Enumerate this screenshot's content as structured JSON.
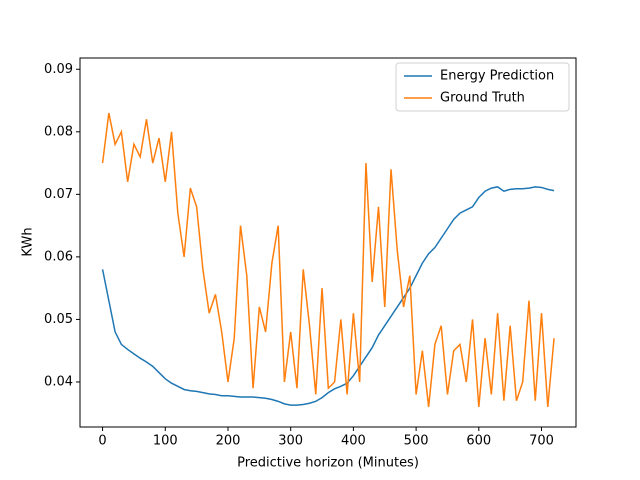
{
  "chart_data": {
    "type": "line",
    "xlabel": "Predictive horizon (Minutes)",
    "ylabel": "KWh",
    "x": [
      0,
      10,
      20,
      30,
      40,
      50,
      60,
      70,
      80,
      90,
      100,
      110,
      120,
      130,
      140,
      150,
      160,
      170,
      180,
      190,
      200,
      210,
      220,
      230,
      240,
      250,
      260,
      270,
      280,
      290,
      300,
      310,
      320,
      330,
      340,
      350,
      360,
      370,
      380,
      390,
      400,
      410,
      420,
      430,
      440,
      450,
      460,
      470,
      480,
      490,
      500,
      510,
      520,
      530,
      540,
      550,
      560,
      570,
      580,
      590,
      600,
      610,
      620,
      630,
      640,
      650,
      660,
      670,
      680,
      690,
      700,
      710,
      720
    ],
    "series": [
      {
        "name": "Energy Prediction",
        "color": "#1f77b4",
        "values": [
          0.058,
          0.053,
          0.048,
          0.046,
          0.0452,
          0.0445,
          0.0438,
          0.0432,
          0.0425,
          0.0415,
          0.0405,
          0.0398,
          0.0393,
          0.0388,
          0.0386,
          0.0385,
          0.0383,
          0.0381,
          0.038,
          0.0378,
          0.0378,
          0.0377,
          0.0376,
          0.0376,
          0.0376,
          0.0375,
          0.0374,
          0.0372,
          0.0369,
          0.0365,
          0.0363,
          0.0363,
          0.0364,
          0.0366,
          0.0369,
          0.0375,
          0.0383,
          0.0389,
          0.0393,
          0.0398,
          0.041,
          0.0425,
          0.044,
          0.0455,
          0.0475,
          0.049,
          0.0505,
          0.052,
          0.0535,
          0.055,
          0.057,
          0.059,
          0.0605,
          0.0615,
          0.063,
          0.0645,
          0.066,
          0.067,
          0.0675,
          0.068,
          0.0695,
          0.0705,
          0.071,
          0.0712,
          0.0705,
          0.0708,
          0.0709,
          0.0709,
          0.071,
          0.0712,
          0.0711,
          0.0708,
          0.0706
        ]
      },
      {
        "name": "Ground Truth",
        "color": "#ff7f0e",
        "values": [
          0.075,
          0.083,
          0.078,
          0.08,
          0.072,
          0.078,
          0.076,
          0.082,
          0.075,
          0.079,
          0.072,
          0.08,
          0.067,
          0.06,
          0.071,
          0.068,
          0.058,
          0.051,
          0.054,
          0.048,
          0.04,
          0.047,
          0.065,
          0.057,
          0.039,
          0.052,
          0.048,
          0.059,
          0.065,
          0.04,
          0.048,
          0.039,
          0.058,
          0.049,
          0.038,
          0.055,
          0.039,
          0.04,
          0.05,
          0.038,
          0.051,
          0.04,
          0.075,
          0.056,
          0.068,
          0.052,
          0.074,
          0.061,
          0.052,
          0.057,
          0.038,
          0.045,
          0.036,
          0.046,
          0.049,
          0.038,
          0.045,
          0.046,
          0.04,
          0.05,
          0.036,
          0.047,
          0.038,
          0.051,
          0.037,
          0.049,
          0.037,
          0.04,
          0.053,
          0.037,
          0.051,
          0.036,
          0.047
        ]
      }
    ],
    "xlim": [
      -36,
      755
    ],
    "ylim": [
      0.0328,
      0.0918
    ],
    "xticks": [
      0,
      100,
      200,
      300,
      400,
      500,
      600,
      700
    ],
    "yticks": [
      0.04,
      0.05,
      0.06,
      0.07,
      0.08,
      0.09
    ],
    "legend": "upper right"
  }
}
